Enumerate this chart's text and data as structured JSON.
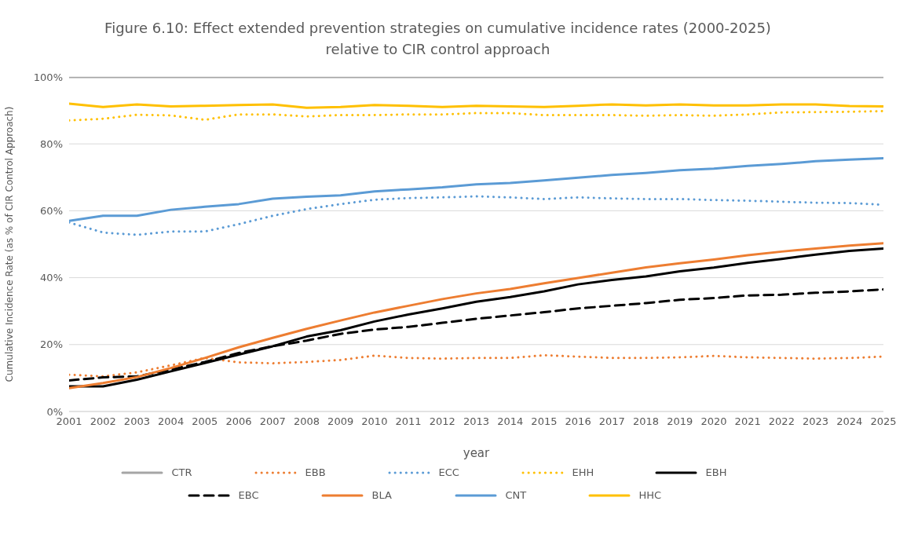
{
  "chart_data": {
    "type": "line",
    "title": "Figure 6.10: Effect extended prevention strategies on cumulative incidence rates (2000-2025) relative to CIR control approach",
    "xlabel": "year",
    "ylabel": "Cumulative Incidence Rate (as % of CIR Control Approach)",
    "x": [
      2001,
      2002,
      2003,
      2004,
      2005,
      2006,
      2007,
      2008,
      2009,
      2010,
      2011,
      2012,
      2013,
      2014,
      2015,
      2016,
      2017,
      2018,
      2019,
      2020,
      2021,
      2022,
      2023,
      2024,
      2025
    ],
    "xlim": [
      2001,
      2025
    ],
    "xticks": [
      2001,
      2002,
      2003,
      2004,
      2005,
      2006,
      2007,
      2008,
      2009,
      2010,
      2011,
      2012,
      2013,
      2014,
      2015,
      2016,
      2017,
      2018,
      2019,
      2020,
      2021,
      2022,
      2023,
      2024,
      2025
    ],
    "ylim": [
      0,
      100
    ],
    "yticks": [
      {
        "value": 0,
        "label": "0%"
      },
      {
        "value": 20,
        "label": "20%"
      },
      {
        "value": 40,
        "label": "40%"
      },
      {
        "value": 60,
        "label": "60%"
      },
      {
        "value": 80,
        "label": "80%"
      },
      {
        "value": 100,
        "label": "100%"
      }
    ],
    "grid": "y",
    "legend": "bottom",
    "marker": "none",
    "series": [
      {
        "name": "CTR",
        "color": "#a5a5a5",
        "line_style": "solid",
        "values": [
          100,
          100,
          100,
          100,
          100,
          100,
          100,
          100,
          100,
          100,
          100,
          100,
          100,
          100,
          100,
          100,
          100,
          100,
          100,
          100,
          100,
          100,
          100,
          100,
          100
        ]
      },
      {
        "name": "EBB",
        "color": "#ed7d31",
        "line_style": "dotted",
        "values": [
          11,
          10.5,
          11.7,
          13.8,
          16,
          14.7,
          14.4,
          14.8,
          15.4,
          16.7,
          16,
          15.8,
          16,
          16,
          16.8,
          16.4,
          16,
          16,
          16.2,
          16.6,
          16.2,
          16,
          15.8,
          16,
          16.4
        ]
      },
      {
        "name": "ECC",
        "color": "#5b9bd5",
        "line_style": "dotted",
        "values": [
          56.5,
          53.5,
          52.8,
          53.8,
          53.8,
          56,
          58.5,
          60.5,
          62,
          63.3,
          63.8,
          64,
          64.3,
          64,
          63.5,
          64,
          63.7,
          63.5,
          63.5,
          63.2,
          63,
          62.7,
          62.4,
          62.3,
          61.8
        ]
      },
      {
        "name": "EHH",
        "color": "#ffc000",
        "line_style": "dotted",
        "values": [
          87,
          87.5,
          88.7,
          88.5,
          87.2,
          88.8,
          88.8,
          88.2,
          88.6,
          88.6,
          88.8,
          88.8,
          89.2,
          89.2,
          88.6,
          88.6,
          88.6,
          88.4,
          88.6,
          88.4,
          88.8,
          89.4,
          89.5,
          89.6,
          89.8
        ]
      },
      {
        "name": "EBH",
        "color": "#000000",
        "line_style": "solid",
        "values": [
          7.5,
          7.5,
          9.5,
          12,
          14.5,
          17,
          19.5,
          22.4,
          24.3,
          26.9,
          29,
          30.8,
          32.8,
          34.2,
          35.9,
          38,
          39.3,
          40.4,
          41.9,
          43,
          44.4,
          45.6,
          46.9,
          48,
          48.7
        ]
      },
      {
        "name": "EBC",
        "color": "#000000",
        "line_style": "dashed",
        "values": [
          9.3,
          10.2,
          10.5,
          12.5,
          14.8,
          17.5,
          19.5,
          21.2,
          23.2,
          24.5,
          25.3,
          26.5,
          27.7,
          28.7,
          29.7,
          30.8,
          31.6,
          32.4,
          33.4,
          33.9,
          34.7,
          34.9,
          35.5,
          35.9,
          36.5
        ]
      },
      {
        "name": "BLA",
        "color": "#ed7d31",
        "line_style": "solid",
        "values": [
          7,
          8.5,
          10.3,
          13,
          16,
          19.2,
          22,
          24.7,
          27.2,
          29.6,
          31.6,
          33.6,
          35.3,
          36.6,
          38.3,
          39.9,
          41.5,
          43.1,
          44.3,
          45.4,
          46.7,
          47.8,
          48.7,
          49.6,
          50.3
        ]
      },
      {
        "name": "CNT",
        "color": "#5b9bd5",
        "line_style": "solid",
        "values": [
          57,
          58.5,
          58.5,
          60.3,
          61.2,
          62,
          63.6,
          64.2,
          64.6,
          65.8,
          66.4,
          67,
          67.9,
          68.3,
          69.1,
          69.9,
          70.7,
          71.3,
          72.1,
          72.6,
          73.4,
          74,
          74.8,
          75.3,
          75.7
        ]
      },
      {
        "name": "HHC",
        "color": "#ffc000",
        "line_style": "solid",
        "values": [
          92,
          91,
          91.8,
          91.2,
          91.4,
          91.6,
          91.8,
          90.8,
          91,
          91.6,
          91.4,
          91,
          91.4,
          91.2,
          91,
          91.4,
          91.8,
          91.5,
          91.8,
          91.5,
          91.5,
          91.8,
          91.8,
          91.3,
          91.2
        ]
      }
    ]
  }
}
